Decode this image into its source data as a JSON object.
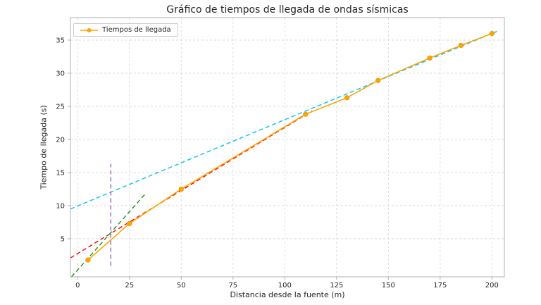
{
  "chart_data": {
    "type": "line",
    "title": "Gráfico de tiempos de llegada de ondas sísmicas",
    "xlabel": "Distancia desde la fuente (m)",
    "ylabel": "Tiempo de llegada (s)",
    "xlim": [
      -3.5,
      206
    ],
    "ylim": [
      -0.75,
      38.4
    ],
    "xticks": [
      0,
      25,
      50,
      75,
      100,
      125,
      150,
      175,
      200
    ],
    "yticks": [
      5,
      10,
      15,
      20,
      25,
      30,
      35
    ],
    "grid": true,
    "legend_position": "upper left",
    "series": [
      {
        "name": "Tiempos de llegada",
        "type": "line-markers",
        "color": "#ffa500",
        "x": [
          5,
          25,
          50,
          110,
          130,
          145,
          170,
          185,
          200
        ],
        "y": [
          1.8,
          7.3,
          12.5,
          23.8,
          26.3,
          28.9,
          32.3,
          34.2,
          36.0
        ]
      }
    ],
    "overlays": [
      {
        "name": "linear-fit-cyan",
        "style": "dashed",
        "color": "#00bfff",
        "x": [
          -3.5,
          203
        ],
        "y": [
          9.5,
          36.4
        ]
      },
      {
        "name": "linear-fit-red",
        "style": "dashed",
        "color": "#ff0000",
        "x": [
          -3.5,
          113
        ],
        "y": [
          2.1,
          24.3
        ]
      },
      {
        "name": "linear-fit-green",
        "style": "dashed",
        "color": "#228b22",
        "x": [
          -3.0,
          33
        ],
        "y": [
          -0.75,
          11.9
        ]
      },
      {
        "name": "crossover-vertical-purple",
        "style": "dashed",
        "color": "#9467bd",
        "x": [
          16,
          16
        ],
        "y": [
          0.9,
          16.3
        ]
      }
    ],
    "colors": {
      "grid": "#d5d5d5",
      "spine": "#b0b0b0",
      "tick_label": "#262626",
      "marker_edge": "#e09200"
    }
  }
}
